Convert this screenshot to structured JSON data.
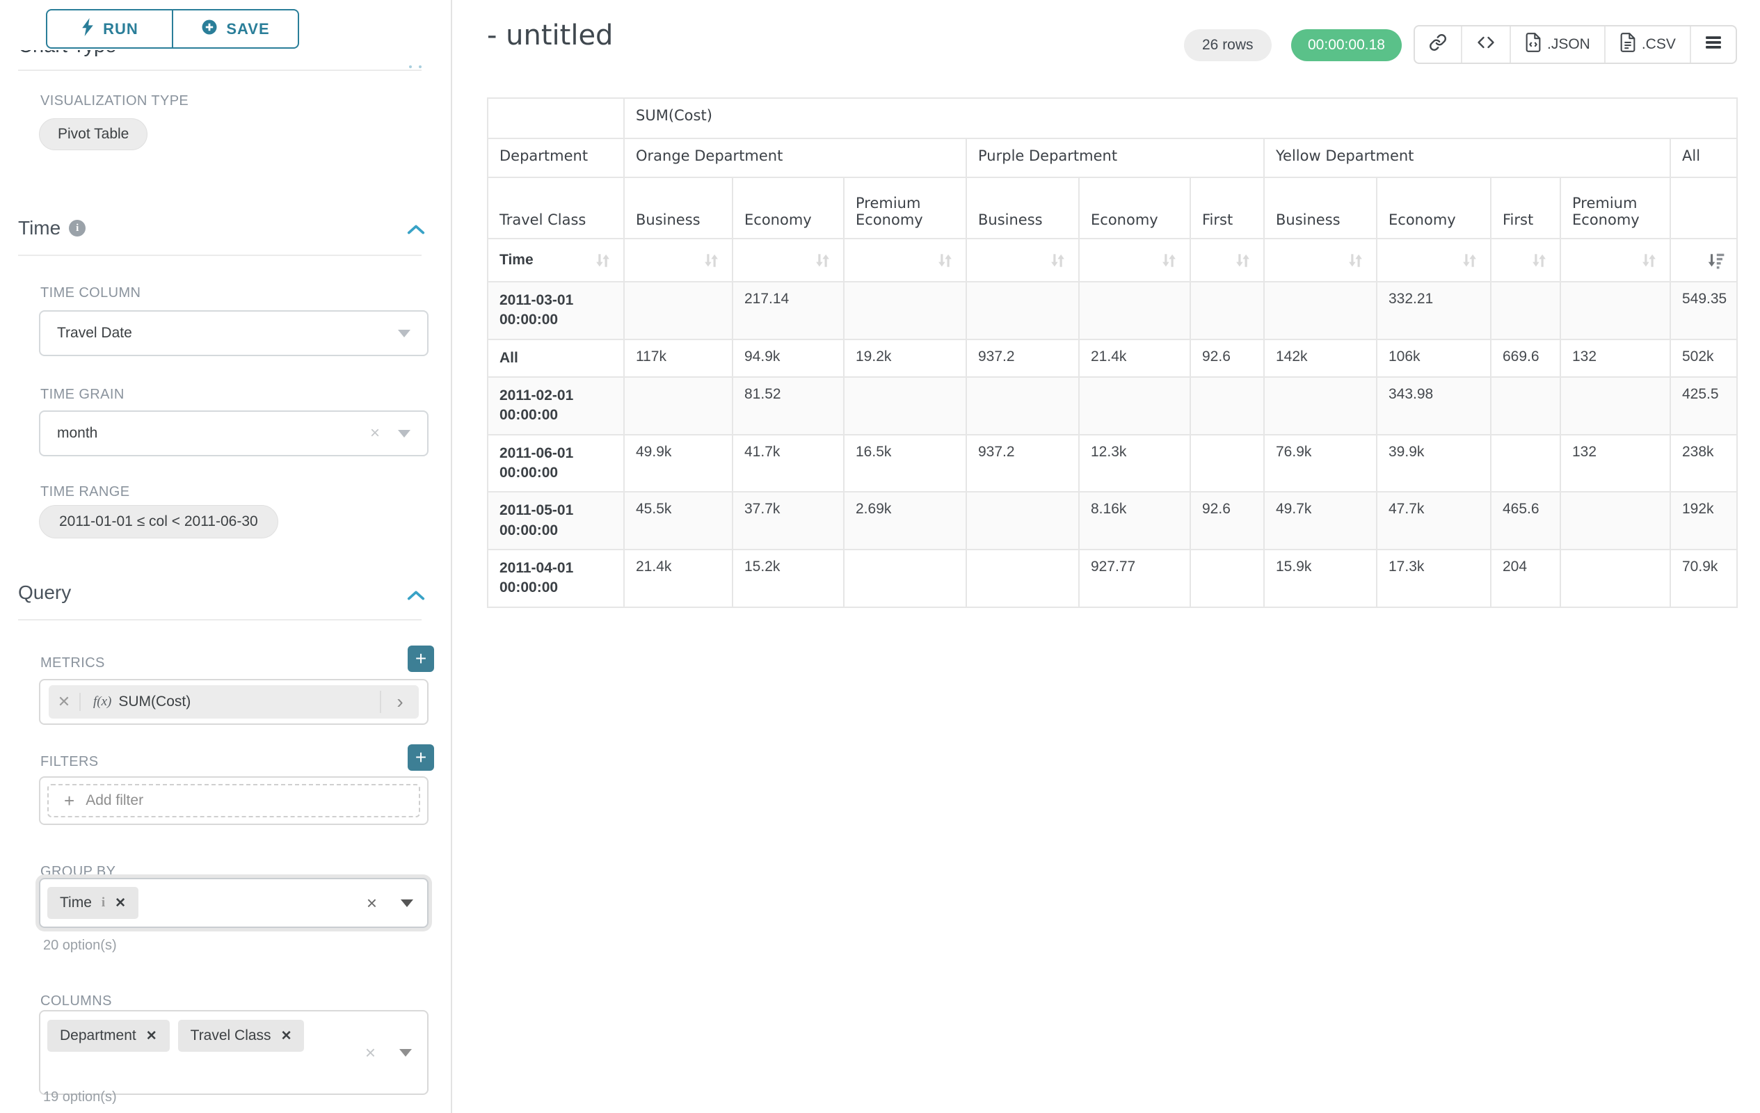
{
  "colors": {
    "accent_teal": "#2a7e99",
    "plus_button_teal": "#3d7f95",
    "section_chevron_blue": "#38a2c6",
    "timer_green": "#5ac189",
    "pill_gray": "#ececec",
    "table_border": "#e6e6e6"
  },
  "icons": {
    "run": "lightning-bolt",
    "save": "plus-circle",
    "time_info": "info-circle",
    "section_collapse": "chevron-up",
    "select_open": "caret-down",
    "metric_expand": "chevron-right",
    "copy_link": "chain-link",
    "embed_code": "code-brackets",
    "export_json": "file-code",
    "export_csv": "file-text",
    "more_menu": "hamburger",
    "sort": "sort-arrows",
    "sort_desc_active": "sort-amount-desc"
  },
  "sidebar": {
    "run_label": "RUN",
    "save_label": "SAVE",
    "chart_type_heading": "Chart Type",
    "viz": {
      "label": "VISUALIZATION TYPE",
      "value": "Pivot Table"
    },
    "time": {
      "title": "Time",
      "column_label": "TIME COLUMN",
      "column_value": "Travel Date",
      "grain_label": "TIME GRAIN",
      "grain_value": "month",
      "range_label": "TIME RANGE",
      "range_value": "2011-01-01 ≤ col < 2011-06-30"
    },
    "query": {
      "title": "Query",
      "metrics_label": "METRICS",
      "metric_fx": "f(x)",
      "metric_value": "SUM(Cost)",
      "filters_label": "FILTERS",
      "add_filter": "Add filter",
      "group_by_label": "GROUP BY",
      "group_by_chip": "Time",
      "group_by_options": "20 option(s)",
      "columns_label": "COLUMNS",
      "columns_chips": [
        "Department",
        "Travel Class"
      ],
      "columns_options": "19 option(s)"
    }
  },
  "header": {
    "title": "- untitled",
    "row_count": "26 rows",
    "duration": "00:00:00.18",
    "json_label": ".JSON",
    "csv_label": ".CSV"
  },
  "table": {
    "metric_header": "SUM(Cost)",
    "row_dim": "Department",
    "sub_dim": "Travel Class",
    "time_label": "Time",
    "groups": [
      {
        "label": "Orange Department",
        "span": 3
      },
      {
        "label": "Purple Department",
        "span": 3
      },
      {
        "label": "Yellow Department",
        "span": 4
      }
    ],
    "all_label": "All",
    "sub_columns": [
      "Business",
      "Economy",
      "Premium Economy",
      "Business",
      "Economy",
      "First",
      "Business",
      "Economy",
      "First",
      "Premium Economy"
    ],
    "rows": [
      {
        "label": "2011-03-01 00:00:00",
        "cells": [
          "",
          "217.14",
          "",
          "",
          "",
          "",
          "",
          "332.21",
          "",
          "",
          "549.35"
        ]
      },
      {
        "label": "All",
        "cells": [
          "117k",
          "94.9k",
          "19.2k",
          "937.2",
          "21.4k",
          "92.6",
          "142k",
          "106k",
          "669.6",
          "132",
          "502k"
        ]
      },
      {
        "label": "2011-02-01 00:00:00",
        "cells": [
          "",
          "81.52",
          "",
          "",
          "",
          "",
          "",
          "343.98",
          "",
          "",
          "425.5"
        ]
      },
      {
        "label": "2011-06-01 00:00:00",
        "cells": [
          "49.9k",
          "41.7k",
          "16.5k",
          "937.2",
          "12.3k",
          "",
          "76.9k",
          "39.9k",
          "",
          "132",
          "238k"
        ]
      },
      {
        "label": "2011-05-01 00:00:00",
        "cells": [
          "45.5k",
          "37.7k",
          "2.69k",
          "",
          "8.16k",
          "92.6",
          "49.7k",
          "47.7k",
          "465.6",
          "",
          "192k"
        ]
      },
      {
        "label": "2011-04-01 00:00:00",
        "cells": [
          "21.4k",
          "15.2k",
          "",
          "",
          "927.77",
          "",
          "15.9k",
          "17.3k",
          "204",
          "",
          "70.9k"
        ]
      }
    ]
  }
}
